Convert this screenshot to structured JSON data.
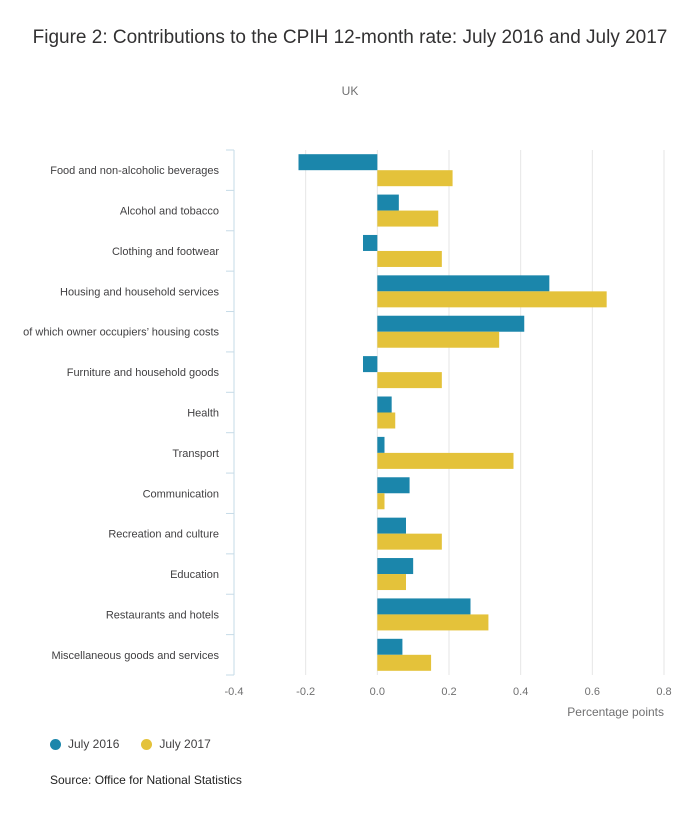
{
  "chart_data": {
    "type": "bar",
    "orientation": "horizontal",
    "title": "Figure 2: Contributions to the CPIH 12-month rate: July 2016 and July 2017",
    "subtitle": "UK",
    "xlabel": "Percentage points",
    "ylabel": "",
    "xlim": [
      -0.4,
      0.8
    ],
    "x_ticks": [
      -0.4,
      -0.2,
      0.0,
      0.2,
      0.4,
      0.6,
      0.8
    ],
    "x_tick_labels": [
      "-0.4",
      "-0.2",
      "0.0",
      "0.2",
      "0.4",
      "0.6",
      "0.8"
    ],
    "grid": true,
    "legend_position": "bottom-left",
    "categories": [
      "Food and non-alcoholic beverages",
      "Alcohol and tobacco",
      "Clothing and footwear",
      "Housing and household services",
      "of which owner occupiers’ housing costs",
      "Furniture and household goods",
      "Health",
      "Transport",
      "Communication",
      "Recreation and culture",
      "Education",
      "Restaurants and hotels",
      "Miscellaneous goods and services"
    ],
    "series": [
      {
        "name": "July 2016",
        "color": "#206095",
        "values": [
          -0.22,
          0.06,
          -0.04,
          0.48,
          0.41,
          -0.04,
          0.04,
          0.02,
          0.09,
          0.08,
          0.1,
          0.26,
          0.07
        ]
      },
      {
        "name": "July 2017",
        "color": "#e6c53b",
        "values": [
          0.21,
          0.17,
          0.18,
          0.64,
          0.34,
          0.18,
          0.05,
          0.38,
          0.02,
          0.18,
          0.08,
          0.31,
          0.15
        ]
      }
    ],
    "source": "Source: Office for National Statistics"
  },
  "colors": {
    "series_2016": "#1b86ab",
    "series_2017": "#e4c23a",
    "grid": "#e6e6e6",
    "axis": "#c6dbe7"
  }
}
